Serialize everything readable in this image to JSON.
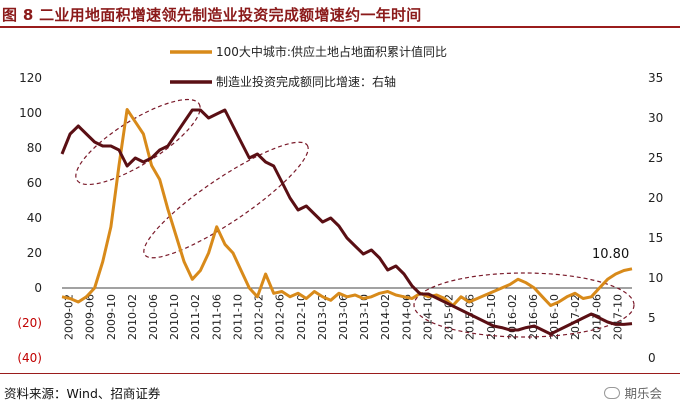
{
  "title": "图 8  二业用地面积增速领先制造业投资完成额增速约一年时间",
  "source": "资料来源：Wind、招商证券",
  "brand": "期乐会",
  "colors": {
    "series_land": "#d88a1a",
    "series_invest": "#5a0f14",
    "ellipse": "#7a1a2a",
    "negative_tick": "#c00000"
  },
  "chart_data": {
    "type": "line",
    "x_labels": [
      "2009-02",
      "2009-06",
      "2009-10",
      "2010-02",
      "2010-06",
      "2010-10",
      "2011-02",
      "2011-06",
      "2011-10",
      "2012-02",
      "2012-06",
      "2012-10",
      "2013-02",
      "2013-06",
      "2013-10",
      "2014-02",
      "2014-06",
      "2014-10",
      "2015-02",
      "2015-06",
      "2015-10",
      "2016-02",
      "2016-06",
      "2016-10",
      "2017-02",
      "2017-06",
      "2017-10"
    ],
    "y_left": {
      "min": -40,
      "max": 120,
      "ticks": [
        "(40)",
        "(20)",
        "0",
        "20",
        "40",
        "60",
        "80",
        "100",
        "120"
      ],
      "tick_values": [
        -40,
        -20,
        0,
        20,
        40,
        60,
        80,
        100,
        120
      ]
    },
    "y_right": {
      "min": 0,
      "max": 35,
      "ticks": [
        "0",
        "5",
        "10",
        "15",
        "20",
        "25",
        "30",
        "35"
      ],
      "tick_values": [
        0,
        5,
        10,
        15,
        20,
        25,
        30,
        35
      ]
    },
    "annotation": "10.80",
    "series": [
      {
        "name": "100大中城市:供应土地占地面积累计值同比",
        "axis": "left",
        "values": [
          -5,
          -6,
          -8,
          -5,
          0,
          15,
          35,
          70,
          102,
          95,
          88,
          70,
          62,
          45,
          30,
          15,
          5,
          10,
          20,
          35,
          25,
          20,
          10,
          0,
          -5,
          8,
          -3,
          -2,
          -5,
          -3,
          -6,
          -2,
          -5,
          -7,
          -3,
          -5,
          -4,
          -6,
          -5,
          -3,
          -2,
          -4,
          -5,
          -6,
          -3,
          -5,
          -4,
          -6,
          -10,
          -5,
          -8,
          -6,
          -4,
          -2,
          0,
          2,
          5,
          3,
          0,
          -5,
          -10,
          -8,
          -5,
          -3,
          -6,
          -5,
          0,
          5,
          8,
          10,
          11
        ]
      },
      {
        "name": "制造业投资完成额同比增速：右轴",
        "axis": "right",
        "values": [
          25.5,
          28,
          29,
          28,
          27,
          26.5,
          26.5,
          26,
          24,
          25,
          24.5,
          25,
          26,
          26.5,
          28,
          29.5,
          31,
          31,
          30,
          30.5,
          31,
          29,
          27,
          25,
          25.5,
          24.5,
          24,
          22,
          20,
          18.5,
          19,
          18,
          17,
          17.5,
          16.5,
          15,
          14,
          13,
          13.5,
          12.5,
          11,
          11.5,
          10.5,
          9,
          8,
          8,
          7.5,
          7,
          6.5,
          6,
          5.5,
          5,
          4.5,
          4,
          3.8,
          3.5,
          3.5,
          3.8,
          4,
          3.5,
          3,
          3.5,
          4,
          4.5,
          5,
          5.5,
          5,
          4.5,
          4.2,
          4.2,
          4.3
        ]
      }
    ],
    "legend_placement": "top-center",
    "grid": false
  }
}
